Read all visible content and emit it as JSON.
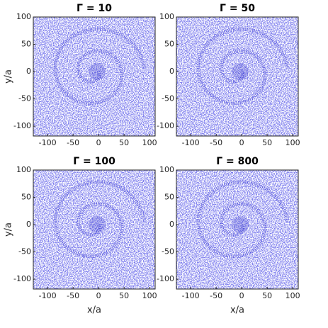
{
  "chart_data": [
    {
      "type": "scatter",
      "title": "Γ = 10",
      "ylabel": "y/a",
      "color": "#2a2acc",
      "xlim": [
        -128,
        111
      ],
      "ylim": [
        -118,
        100
      ],
      "xticks": [
        -100,
        -50,
        0,
        50,
        100
      ],
      "yticks": [
        100,
        50,
        0,
        -50,
        -100
      ]
    },
    {
      "type": "scatter",
      "title": "Γ = 50",
      "color": "#2a2acc",
      "xlim": [
        -128,
        111
      ],
      "ylim": [
        -118,
        100
      ],
      "xticks": [
        -100,
        -50,
        0,
        50,
        100
      ],
      "yticks": [
        100,
        50,
        0,
        -50,
        -100
      ]
    },
    {
      "type": "scatter",
      "title": "Γ = 100",
      "ylabel": "y/a",
      "xlabel": "x/a",
      "color": "#2a2acc",
      "xlim": [
        -128,
        111
      ],
      "ylim": [
        -118,
        100
      ],
      "xticks": [
        -100,
        -50,
        0,
        50,
        100
      ],
      "yticks": [
        100,
        50,
        0,
        -50,
        -100
      ]
    },
    {
      "type": "scatter",
      "title": "Γ = 800",
      "xlabel": "x/a",
      "color": "#2a2acc",
      "xlim": [
        -128,
        111
      ],
      "ylim": [
        -118,
        100
      ],
      "xticks": [
        -100,
        -50,
        0,
        50,
        100
      ],
      "yticks": [
        100,
        50,
        0,
        -50,
        -100
      ]
    }
  ]
}
